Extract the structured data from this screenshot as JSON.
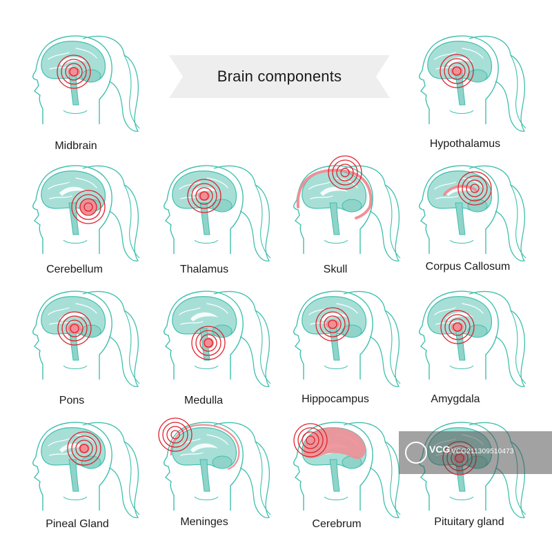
{
  "title": "Brain components",
  "colors": {
    "outline": "#3fbfae",
    "brain": "#a7dfd7",
    "brain_fill": "#8fd3c9",
    "highlight": "#f08f96",
    "ring": "#e0202a",
    "ribbon": "#eeeeee"
  },
  "components": [
    {
      "label": "Midbrain",
      "icon": "midbrain-highlight",
      "target": "mid",
      "rings": 4
    },
    {
      "label": "Hypothalamus",
      "icon": "hypothalamus-highlight",
      "target": "hypo",
      "rings": 4
    },
    {
      "label": "Cerebellum",
      "icon": "cerebellum-highlight",
      "target": "cereb",
      "rings": 4
    },
    {
      "label": "Thalamus",
      "icon": "thalamus-highlight",
      "target": "thal",
      "rings": 4
    },
    {
      "label": "Skull",
      "icon": "skull-highlight",
      "target": "skull",
      "rings": 4
    },
    {
      "label": "Corpus Callosum",
      "icon": "corpus-callosum-highlight",
      "target": "cc",
      "rings": 4
    },
    {
      "label": "Pons",
      "icon": "pons-highlight",
      "target": "pons",
      "rings": 4
    },
    {
      "label": "Medulla",
      "icon": "medulla-highlight",
      "target": "med",
      "rings": 4
    },
    {
      "label": "Hippocampus",
      "icon": "hippocampus-highlight",
      "target": "hip",
      "rings": 4
    },
    {
      "label": "Amygdala",
      "icon": "amygdala-highlight",
      "target": "amyg",
      "rings": 4
    },
    {
      "label": "Pineal Gland",
      "icon": "pineal-gland-highlight",
      "target": "pineal",
      "rings": 4
    },
    {
      "label": "Meninges",
      "icon": "meninges-highlight",
      "target": "men",
      "rings": 4
    },
    {
      "label": "Cerebrum",
      "icon": "cerebrum-highlight",
      "target": "cerebrum",
      "rings": 4
    },
    {
      "label": "Pituitary gland",
      "icon": "pituitary-gland-highlight",
      "target": "pit",
      "rings": 4
    }
  ],
  "watermark": {
    "logo_text": "VCG",
    "id_text": "VCG211309510473"
  }
}
